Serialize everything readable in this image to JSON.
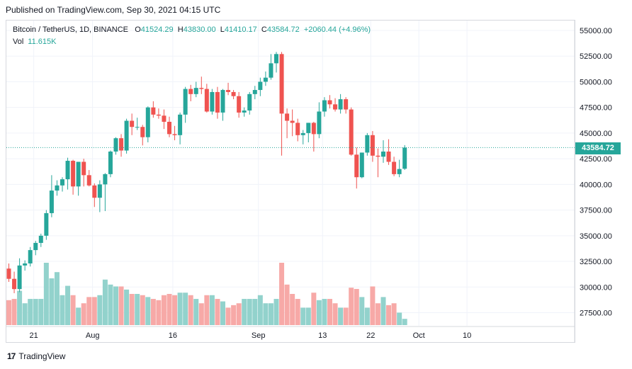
{
  "published": "Published on TradingView.com, Sep 30, 2021 04:15 UTC",
  "legend": {
    "symbol": "Bitcoin / TetherUS, 1D, BINANCE",
    "o_label": "O",
    "o": "41524.29",
    "h_label": "H",
    "h": "43830.00",
    "l_label": "L",
    "l": "41410.17",
    "c_label": "C",
    "c": "43584.72",
    "change": "+2060.44 (+4.96%)",
    "vol_label": "Vol",
    "vol_value": "11.615K"
  },
  "last_price_tag": "43584.72",
  "footer": {
    "brand": "TradingView",
    "logo": "17"
  },
  "colors": {
    "up": "#26a69a",
    "down": "#ef5350",
    "up_vol": "#92d2cc",
    "down_vol": "#f7a9a7",
    "grid": "#f0f3fa"
  },
  "chart_data": {
    "type": "candlestick",
    "ylim": [
      26500,
      56000
    ],
    "y_ticks": [
      "55000.00",
      "52500.00",
      "50000.00",
      "47500.00",
      "45000.00",
      "42500.00",
      "40000.00",
      "37500.00",
      "35000.00",
      "32500.00",
      "30000.00",
      "27500.00"
    ],
    "x_ticks": [
      {
        "label": "21",
        "index": 2
      },
      {
        "label": "Aug",
        "index": 13
      },
      {
        "label": "16",
        "index": 28
      },
      {
        "label": "Sep",
        "index": 44
      },
      {
        "label": "13",
        "index": 56
      },
      {
        "label": "22",
        "index": 65
      },
      {
        "label": "Oct",
        "index": 74
      },
      {
        "label": "10",
        "index": 83
      }
    ],
    "candles": [
      {
        "o": 31800,
        "h": 32300,
        "l": 30500,
        "c": 30800,
        "v": 0.4
      },
      {
        "o": 30800,
        "h": 31500,
        "l": 29400,
        "c": 29800,
        "v": 0.42
      },
      {
        "o": 29800,
        "h": 32800,
        "l": 29500,
        "c": 32100,
        "v": 0.55
      },
      {
        "o": 32100,
        "h": 32600,
        "l": 31600,
        "c": 32300,
        "v": 0.35
      },
      {
        "o": 32300,
        "h": 33900,
        "l": 32000,
        "c": 33600,
        "v": 0.42
      },
      {
        "o": 33600,
        "h": 34500,
        "l": 33100,
        "c": 34300,
        "v": 0.42
      },
      {
        "o": 34300,
        "h": 35200,
        "l": 33900,
        "c": 35000,
        "v": 0.42
      },
      {
        "o": 35000,
        "h": 37500,
        "l": 34600,
        "c": 37200,
        "v": 1.0
      },
      {
        "o": 37200,
        "h": 40900,
        "l": 36800,
        "c": 39400,
        "v": 0.75
      },
      {
        "o": 39400,
        "h": 40400,
        "l": 38900,
        "c": 39900,
        "v": 0.85
      },
      {
        "o": 39900,
        "h": 40700,
        "l": 39300,
        "c": 40500,
        "v": 0.48
      },
      {
        "o": 40500,
        "h": 42600,
        "l": 39500,
        "c": 42300,
        "v": 0.63
      },
      {
        "o": 42300,
        "h": 42400,
        "l": 39000,
        "c": 39800,
        "v": 0.48
      },
      {
        "o": 39800,
        "h": 42200,
        "l": 38900,
        "c": 42200,
        "v": 0.28
      },
      {
        "o": 42200,
        "h": 42500,
        "l": 39800,
        "c": 40900,
        "v": 0.35
      },
      {
        "o": 40900,
        "h": 41400,
        "l": 39800,
        "c": 39900,
        "v": 0.45
      },
      {
        "o": 39900,
        "h": 40100,
        "l": 37800,
        "c": 38700,
        "v": 0.45
      },
      {
        "o": 38700,
        "h": 40400,
        "l": 37300,
        "c": 40000,
        "v": 0.48
      },
      {
        "o": 40000,
        "h": 41100,
        "l": 37400,
        "c": 41000,
        "v": 0.73
      },
      {
        "o": 41000,
        "h": 43300,
        "l": 40700,
        "c": 43200,
        "v": 0.65
      },
      {
        "o": 43200,
        "h": 44600,
        "l": 42900,
        "c": 44500,
        "v": 0.62
      },
      {
        "o": 44500,
        "h": 44900,
        "l": 42700,
        "c": 43300,
        "v": 0.62
      },
      {
        "o": 43300,
        "h": 46400,
        "l": 43000,
        "c": 46200,
        "v": 0.57
      },
      {
        "o": 46200,
        "h": 46900,
        "l": 44800,
        "c": 45600,
        "v": 0.5
      },
      {
        "o": 45600,
        "h": 46500,
        "l": 45300,
        "c": 45600,
        "v": 0.5
      },
      {
        "o": 45600,
        "h": 45800,
        "l": 43800,
        "c": 44600,
        "v": 0.48
      },
      {
        "o": 44600,
        "h": 47600,
        "l": 44100,
        "c": 47500,
        "v": 0.45
      },
      {
        "o": 47500,
        "h": 48100,
        "l": 46500,
        "c": 46800,
        "v": 0.42
      },
      {
        "o": 46800,
        "h": 47400,
        "l": 46400,
        "c": 46700,
        "v": 0.4
      },
      {
        "o": 46700,
        "h": 47300,
        "l": 45400,
        "c": 46100,
        "v": 0.48
      },
      {
        "o": 46100,
        "h": 46600,
        "l": 44600,
        "c": 44900,
        "v": 0.5
      },
      {
        "o": 44900,
        "h": 45700,
        "l": 44300,
        "c": 44800,
        "v": 0.48
      },
      {
        "o": 44800,
        "h": 47000,
        "l": 43900,
        "c": 46800,
        "v": 0.52
      },
      {
        "o": 46800,
        "h": 49500,
        "l": 46000,
        "c": 49300,
        "v": 0.52
      },
      {
        "o": 49300,
        "h": 49700,
        "l": 48100,
        "c": 48800,
        "v": 0.48
      },
      {
        "o": 48800,
        "h": 50000,
        "l": 48500,
        "c": 49400,
        "v": 0.42
      },
      {
        "o": 49400,
        "h": 50500,
        "l": 48800,
        "c": 49300,
        "v": 0.35
      },
      {
        "o": 49300,
        "h": 49800,
        "l": 47000,
        "c": 47100,
        "v": 0.48
      },
      {
        "o": 47100,
        "h": 49300,
        "l": 46800,
        "c": 49000,
        "v": 0.48
      },
      {
        "o": 49000,
        "h": 49500,
        "l": 46400,
        "c": 47000,
        "v": 0.42
      },
      {
        "o": 47000,
        "h": 49300,
        "l": 46200,
        "c": 49200,
        "v": 0.38
      },
      {
        "o": 49200,
        "h": 49900,
        "l": 48700,
        "c": 49000,
        "v": 0.28
      },
      {
        "o": 49000,
        "h": 49200,
        "l": 48300,
        "c": 48600,
        "v": 0.32
      },
      {
        "o": 48600,
        "h": 49000,
        "l": 46500,
        "c": 47000,
        "v": 0.35
      },
      {
        "o": 47000,
        "h": 47500,
        "l": 46600,
        "c": 47200,
        "v": 0.42
      },
      {
        "o": 47200,
        "h": 49000,
        "l": 46800,
        "c": 48800,
        "v": 0.42
      },
      {
        "o": 48800,
        "h": 49600,
        "l": 48300,
        "c": 49200,
        "v": 0.42
      },
      {
        "o": 49200,
        "h": 50400,
        "l": 48600,
        "c": 50000,
        "v": 0.48
      },
      {
        "o": 50000,
        "h": 51000,
        "l": 49600,
        "c": 50400,
        "v": 0.35
      },
      {
        "o": 50400,
        "h": 52700,
        "l": 50200,
        "c": 51800,
        "v": 0.35
      },
      {
        "o": 51800,
        "h": 52900,
        "l": 50900,
        "c": 52700,
        "v": 0.42
      },
      {
        "o": 52700,
        "h": 52900,
        "l": 42800,
        "c": 46900,
        "v": 1.0
      },
      {
        "o": 46900,
        "h": 47400,
        "l": 44500,
        "c": 46200,
        "v": 0.65
      },
      {
        "o": 46200,
        "h": 47300,
        "l": 44700,
        "c": 46000,
        "v": 0.5
      },
      {
        "o": 46000,
        "h": 46400,
        "l": 44200,
        "c": 44800,
        "v": 0.42
      },
      {
        "o": 44800,
        "h": 45300,
        "l": 43900,
        "c": 45000,
        "v": 0.28
      },
      {
        "o": 45000,
        "h": 46000,
        "l": 44100,
        "c": 46000,
        "v": 0.28
      },
      {
        "o": 46000,
        "h": 46100,
        "l": 43200,
        "c": 44900,
        "v": 0.52
      },
      {
        "o": 44900,
        "h": 48000,
        "l": 44500,
        "c": 47100,
        "v": 0.4
      },
      {
        "o": 47100,
        "h": 48500,
        "l": 46600,
        "c": 48200,
        "v": 0.42
      },
      {
        "o": 48200,
        "h": 48700,
        "l": 47400,
        "c": 47800,
        "v": 0.42
      },
      {
        "o": 47800,
        "h": 48400,
        "l": 47100,
        "c": 47300,
        "v": 0.35
      },
      {
        "o": 47300,
        "h": 48800,
        "l": 46900,
        "c": 48300,
        "v": 0.28
      },
      {
        "o": 48300,
        "h": 48500,
        "l": 46900,
        "c": 47300,
        "v": 0.28
      },
      {
        "o": 47300,
        "h": 47500,
        "l": 42800,
        "c": 42900,
        "v": 0.6
      },
      {
        "o": 42900,
        "h": 43600,
        "l": 39600,
        "c": 40700,
        "v": 0.58
      },
      {
        "o": 40700,
        "h": 43100,
        "l": 40600,
        "c": 43100,
        "v": 0.45
      },
      {
        "o": 43100,
        "h": 45000,
        "l": 42800,
        "c": 44800,
        "v": 0.28
      },
      {
        "o": 44800,
        "h": 45200,
        "l": 42200,
        "c": 42800,
        "v": 0.62
      },
      {
        "o": 42800,
        "h": 43500,
        "l": 40700,
        "c": 42700,
        "v": 0.35
      },
      {
        "o": 42700,
        "h": 44300,
        "l": 42100,
        "c": 43200,
        "v": 0.45
      },
      {
        "o": 43200,
        "h": 44400,
        "l": 41900,
        "c": 42200,
        "v": 0.32
      },
      {
        "o": 42200,
        "h": 42700,
        "l": 40800,
        "c": 41000,
        "v": 0.35
      },
      {
        "o": 41000,
        "h": 42400,
        "l": 40700,
        "c": 41500,
        "v": 0.2
      },
      {
        "o": 41524.29,
        "h": 43830,
        "l": 41410.17,
        "c": 43584.72,
        "v": 0.1
      }
    ]
  }
}
